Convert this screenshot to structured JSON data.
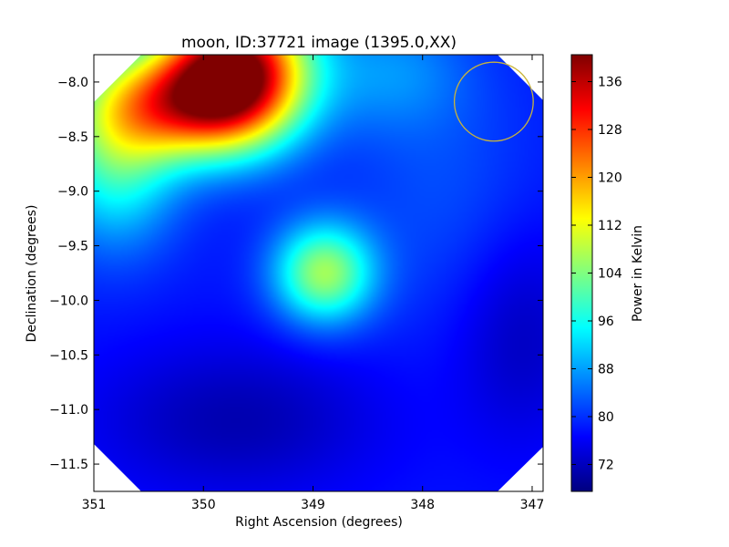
{
  "chart_data": {
    "type": "heatmap",
    "title": "moon, ID:37721 image (1395.0,XX)",
    "xlabel": "Right Ascension (degrees)",
    "ylabel": "Declination (degrees)",
    "xlim": [
      351.0,
      346.9
    ],
    "ylim": [
      -11.75,
      -7.75
    ],
    "x_ticks": [
      351,
      350,
      349,
      348,
      347
    ],
    "x_tick_labels": [
      "351",
      "350",
      "349",
      "348",
      "347"
    ],
    "y_ticks": [
      -8.0,
      -8.5,
      -9.0,
      -9.5,
      -10.0,
      -10.5,
      -11.0,
      -11.5
    ],
    "y_tick_labels": [
      "−8.0",
      "−8.5",
      "−9.0",
      "−9.5",
      "−10.0",
      "−10.5",
      "−11.0",
      "−11.5"
    ],
    "colorbar": {
      "label": "Power in Kelvin",
      "range": [
        67.5,
        140.5
      ],
      "ticks": [
        72,
        80,
        88,
        96,
        104,
        112,
        120,
        128,
        136
      ],
      "colormap": "jet"
    },
    "background_level_k": 78,
    "sources": [
      {
        "ra": 349.7,
        "dec": -7.9,
        "peak_k": 140,
        "sigma_ra": 0.45,
        "sigma_dec": 0.45
      },
      {
        "ra": 350.3,
        "dec": -8.2,
        "peak_k": 112,
        "sigma_ra": 0.55,
        "sigma_dec": 0.35
      },
      {
        "ra": 350.8,
        "dec": -8.7,
        "peak_k": 98,
        "sigma_ra": 0.4,
        "sigma_dec": 0.55
      },
      {
        "ra": 348.9,
        "dec": -9.75,
        "peak_k": 106,
        "sigma_ra": 0.32,
        "sigma_dec": 0.32
      },
      {
        "ra": 348.3,
        "dec": -7.9,
        "peak_k": 86,
        "sigma_ra": 0.5,
        "sigma_dec": 0.4
      }
    ],
    "marker_circle": {
      "ra": 347.35,
      "dec": -8.18,
      "radius_deg": 0.36,
      "color": "#c8b43c"
    },
    "grid": false
  }
}
